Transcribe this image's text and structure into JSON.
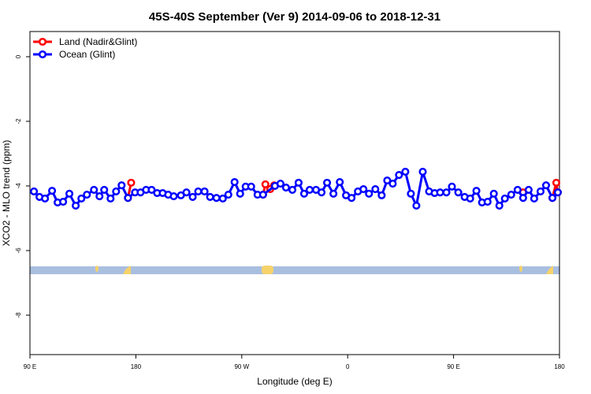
{
  "chart_data": {
    "type": "line",
    "title": "45S-40S September (Ver 9)   2014-09-06 to 2018-12-31",
    "x_label": "Longitude (deg E)",
    "y_label": "XCO2 - MLO trend (ppm)",
    "xlim": [
      90,
      540
    ],
    "ylim": [
      -9.22,
      0.78
    ],
    "xticks": [
      {
        "value": 90,
        "label": "90 E"
      },
      180,
      {
        "value": 270,
        "label": "90 W"
      },
      {
        "value": 360,
        "label": "0"
      },
      {
        "value": 450,
        "label": "90 E"
      },
      {
        "value": 540,
        "label": "180"
      }
    ],
    "yticks": [
      -8,
      -6,
      -4,
      -2,
      0
    ],
    "legend": "top-left",
    "series": [
      {
        "name": "Land (Nadir&Glint)",
        "color": "#ff0000",
        "x": [
          173.3,
          176.0,
          288.1,
          290.1,
          294.2,
          297.5,
          509.1,
          534.0,
          537.3,
          538.6
        ],
        "values": [
          -4.37,
          -3.9,
          -4.27,
          -3.95,
          -4.1,
          -3.98,
          -4.2,
          -4.37,
          -3.9,
          -4.2
        ]
      },
      {
        "name": "Ocean (Glint)",
        "color": "#0000ff",
        "x": [
          93.4,
          98.1,
          102.8,
          108.8,
          113.5,
          118.2,
          123.5,
          128.9,
          133.7,
          138.4,
          144.4,
          149.1,
          153.1,
          158.5,
          163.2,
          167.9,
          173.3,
          179.3,
          184.0,
          188.7,
          193.4,
          198.1,
          202.8,
          207.5,
          212.2,
          218.3,
          223.0,
          228.3,
          233.0,
          238.4,
          243.1,
          248.5,
          253.9,
          258.6,
          263.9,
          268.6,
          273.3,
          278.0,
          283.4,
          288.1,
          298.2,
          302.9,
          307.6,
          313.0,
          318.3,
          323.0,
          327.7,
          333.1,
          337.8,
          342.5,
          347.9,
          353.3,
          358.6,
          363.3,
          368.7,
          373.4,
          378.1,
          383.5,
          388.9,
          393.6,
          398.3,
          403.6,
          409.0,
          413.7,
          418.4,
          423.8,
          429.2,
          433.9,
          438.6,
          443.9,
          448.6,
          454.0,
          459.4,
          464.1,
          469.4,
          474.2,
          478.9,
          484.2,
          488.9,
          493.6,
          499.0,
          504.4,
          509.1,
          513.8,
          518.5,
          523.9,
          528.6,
          534.0,
          538.6
        ],
        "values": [
          -4.17,
          -4.34,
          -4.39,
          -4.15,
          -4.51,
          -4.49,
          -4.24,
          -4.61,
          -4.39,
          -4.27,
          -4.12,
          -4.32,
          -4.12,
          -4.39,
          -4.17,
          -3.98,
          -4.37,
          -4.2,
          -4.2,
          -4.12,
          -4.12,
          -4.22,
          -4.22,
          -4.27,
          -4.32,
          -4.29,
          -4.2,
          -4.34,
          -4.17,
          -4.17,
          -4.34,
          -4.37,
          -4.39,
          -4.27,
          -3.88,
          -4.24,
          -4.02,
          -4.02,
          -4.27,
          -4.27,
          -4.0,
          -3.93,
          -4.05,
          -4.12,
          -3.9,
          -4.24,
          -4.12,
          -4.12,
          -4.2,
          -3.9,
          -4.24,
          -3.88,
          -4.29,
          -4.37,
          -4.17,
          -4.1,
          -4.24,
          -4.1,
          -4.29,
          -3.83,
          -3.93,
          -3.66,
          -3.56,
          -4.24,
          -4.61,
          -3.56,
          -4.17,
          -4.22,
          -4.2,
          -4.2,
          -4.02,
          -4.2,
          -4.34,
          -4.39,
          -4.15,
          -4.51,
          -4.49,
          -4.24,
          -4.61,
          -4.39,
          -4.27,
          -4.12,
          -4.37,
          -4.12,
          -4.39,
          -4.17,
          -3.98,
          -4.37,
          -4.2
        ]
      }
    ]
  }
}
